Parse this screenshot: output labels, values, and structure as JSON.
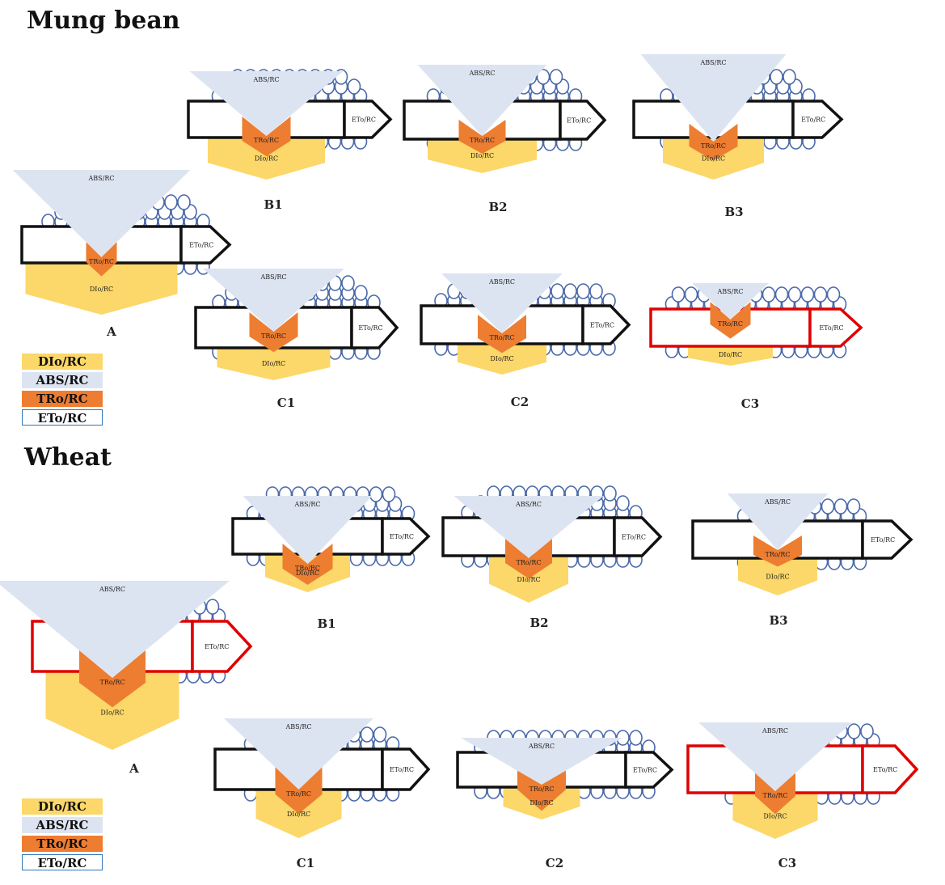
{
  "sections": [
    {
      "title": "Mung bean",
      "legend": [
        "DIo/RC",
        "ABS/RC",
        "TRo/RC",
        "ETo/RC"
      ],
      "panels": [
        {
          "id": "A",
          "label": "A",
          "abs_label": "ABS/RC",
          "tr_label": "TRo/RC",
          "di_label": "DIo/RC",
          "et_label": "ETo/RC",
          "highlight": false
        },
        {
          "id": "B1",
          "label": "B1",
          "abs_label": "ABS/RC",
          "tr_label": "TRo/RC",
          "di_label": "DIo/RC",
          "et_label": "ETo/RC",
          "highlight": false
        },
        {
          "id": "B2",
          "label": "B2",
          "abs_label": "ABS/RC",
          "tr_label": "TRo/RC",
          "di_label": "DIo/RC",
          "et_label": "ETo/RC",
          "highlight": false
        },
        {
          "id": "B3",
          "label": "B3",
          "abs_label": "ABS/RC",
          "tr_label": "TRo/RC",
          "di_label": "DIo/RC",
          "et_label": "ETo/RC",
          "highlight": false
        },
        {
          "id": "C1",
          "label": "C1",
          "abs_label": "ABS/RC",
          "tr_label": "TRo/RC",
          "di_label": "DIo/RC",
          "et_label": "ETo/RC",
          "highlight": false
        },
        {
          "id": "C2",
          "label": "C2",
          "abs_label": "ABS/RC",
          "tr_label": "TRo/RC",
          "di_label": "DIo/RC",
          "et_label": "ETo/RC",
          "highlight": false
        },
        {
          "id": "C3",
          "label": "C3",
          "abs_label": "ABS/RC",
          "tr_label": "TRo/RC",
          "di_label": "DIo/RC",
          "et_label": "ETo/RC",
          "highlight": true
        }
      ]
    },
    {
      "title": "Wheat",
      "legend": [
        "DIo/RC",
        "ABS/RC",
        "TRo/RC",
        "ETo/RC"
      ],
      "panels": [
        {
          "id": "A",
          "label": "A",
          "abs_label": "ABS/RC",
          "tr_label": "TRo/RC",
          "di_label": "DIo/RC",
          "et_label": "ETo/RC",
          "highlight": true
        },
        {
          "id": "B1",
          "label": "B1",
          "abs_label": "ABS/RC",
          "tr_label": "TRo/RC",
          "di_label": "DIo/RC",
          "et_label": "ETo/RC",
          "highlight": false
        },
        {
          "id": "B2",
          "label": "B2",
          "abs_label": "ABS/RC",
          "tr_label": "TRo/RC",
          "di_label": "DIo/RC",
          "et_label": "ETo/RC",
          "highlight": false
        },
        {
          "id": "B3",
          "label": "B3",
          "abs_label": "ABS/RC",
          "tr_label": "TRo/RC",
          "di_label": "DIo/RC",
          "et_label": "ETo/RC",
          "highlight": false
        },
        {
          "id": "C1",
          "label": "C1",
          "abs_label": "ABS/RC",
          "tr_label": "TRo/RC",
          "di_label": "DIo/RC",
          "et_label": "ETo/RC",
          "highlight": false
        },
        {
          "id": "C2",
          "label": "C2",
          "abs_label": "ABS/RC",
          "tr_label": "TRo/RC",
          "di_label": "DIo/RC",
          "et_label": "ETo/RC",
          "highlight": false
        },
        {
          "id": "C3",
          "label": "C3",
          "abs_label": "ABS/RC",
          "tr_label": "TRo/RC",
          "di_label": "DIo/RC",
          "et_label": "ETo/RC",
          "highlight": true
        }
      ]
    }
  ],
  "colors": {
    "abs": "#dde4f1",
    "tr": "#ed7d31",
    "di": "#fcd769",
    "membrane": "#4a69a8",
    "outline": "#111111",
    "highlight": "#e00000",
    "legend_et_border": "#2e75b6"
  }
}
